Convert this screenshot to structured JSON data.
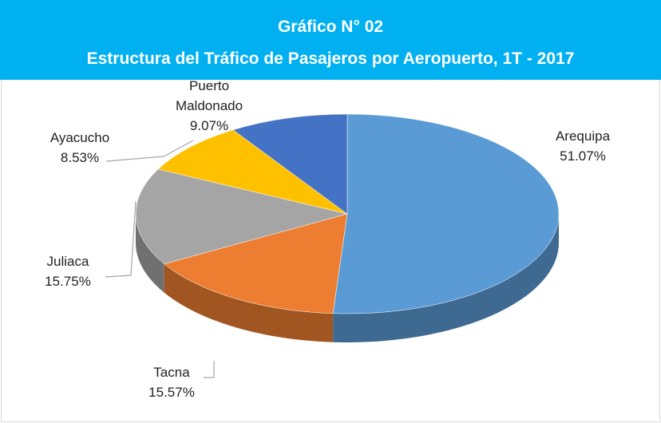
{
  "chart_data": {
    "type": "pie3d",
    "title": "Gráfico N° 02",
    "subtitle": "Estructura del Tráfico de Pasajeros por Aeropuerto, 1T - 2017",
    "categories": [
      "Arequipa",
      "Tacna",
      "Juliaca",
      "Ayacucho",
      "Puerto Maldonado"
    ],
    "values": [
      51.07,
      15.57,
      15.75,
      8.53,
      9.07
    ],
    "value_labels": [
      "51.07%",
      "15.57%",
      "15.75%",
      "8.53%",
      "9.07%"
    ],
    "colors": [
      "#5b9bd5",
      "#ed7d31",
      "#a5a5a5",
      "#ffc000",
      "#4472c4"
    ]
  }
}
